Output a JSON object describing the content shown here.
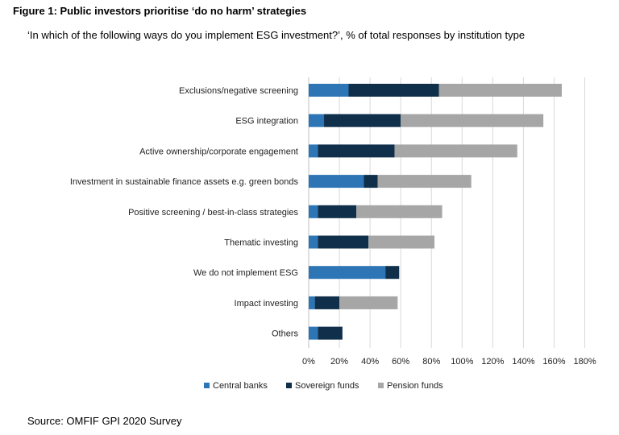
{
  "figure": {
    "title": "Figure 1: Public investors prioritise ‘do no harm’ strategies",
    "subtitle": "‘In which of the following ways do you implement ESG investment?’, % of total responses by institution type",
    "source": "Source: OMFIF GPI 2020 Survey"
  },
  "chart_data": {
    "type": "bar",
    "orientation": "horizontal",
    "stacked": true,
    "categories": [
      "Exclusions/negative screening",
      "ESG integration",
      "Active ownership/corporate engagement",
      "Investment in sustainable finance assets e.g. green bonds",
      "Positive screening / best-in-class strategies",
      "Thematic investing",
      "We do not implement ESG",
      "Impact investing",
      "Others"
    ],
    "series": [
      {
        "name": "Central banks",
        "color": "#2e75b6",
        "values": [
          26,
          10,
          6,
          36,
          6,
          6,
          50,
          4,
          6
        ]
      },
      {
        "name": "Sovereign funds",
        "color": "#0f2f4a",
        "values": [
          59,
          50,
          50,
          9,
          25,
          33,
          9,
          16,
          16
        ]
      },
      {
        "name": "Pension funds",
        "color": "#a6a6a6",
        "values": [
          80,
          93,
          80,
          61,
          56,
          43,
          0,
          38,
          0
        ]
      }
    ],
    "xlim": [
      0,
      180
    ],
    "xticks": [
      0,
      20,
      40,
      60,
      80,
      100,
      120,
      140,
      160,
      180
    ],
    "tick_suffix": "%",
    "grid": true,
    "legend_position": "bottom"
  }
}
